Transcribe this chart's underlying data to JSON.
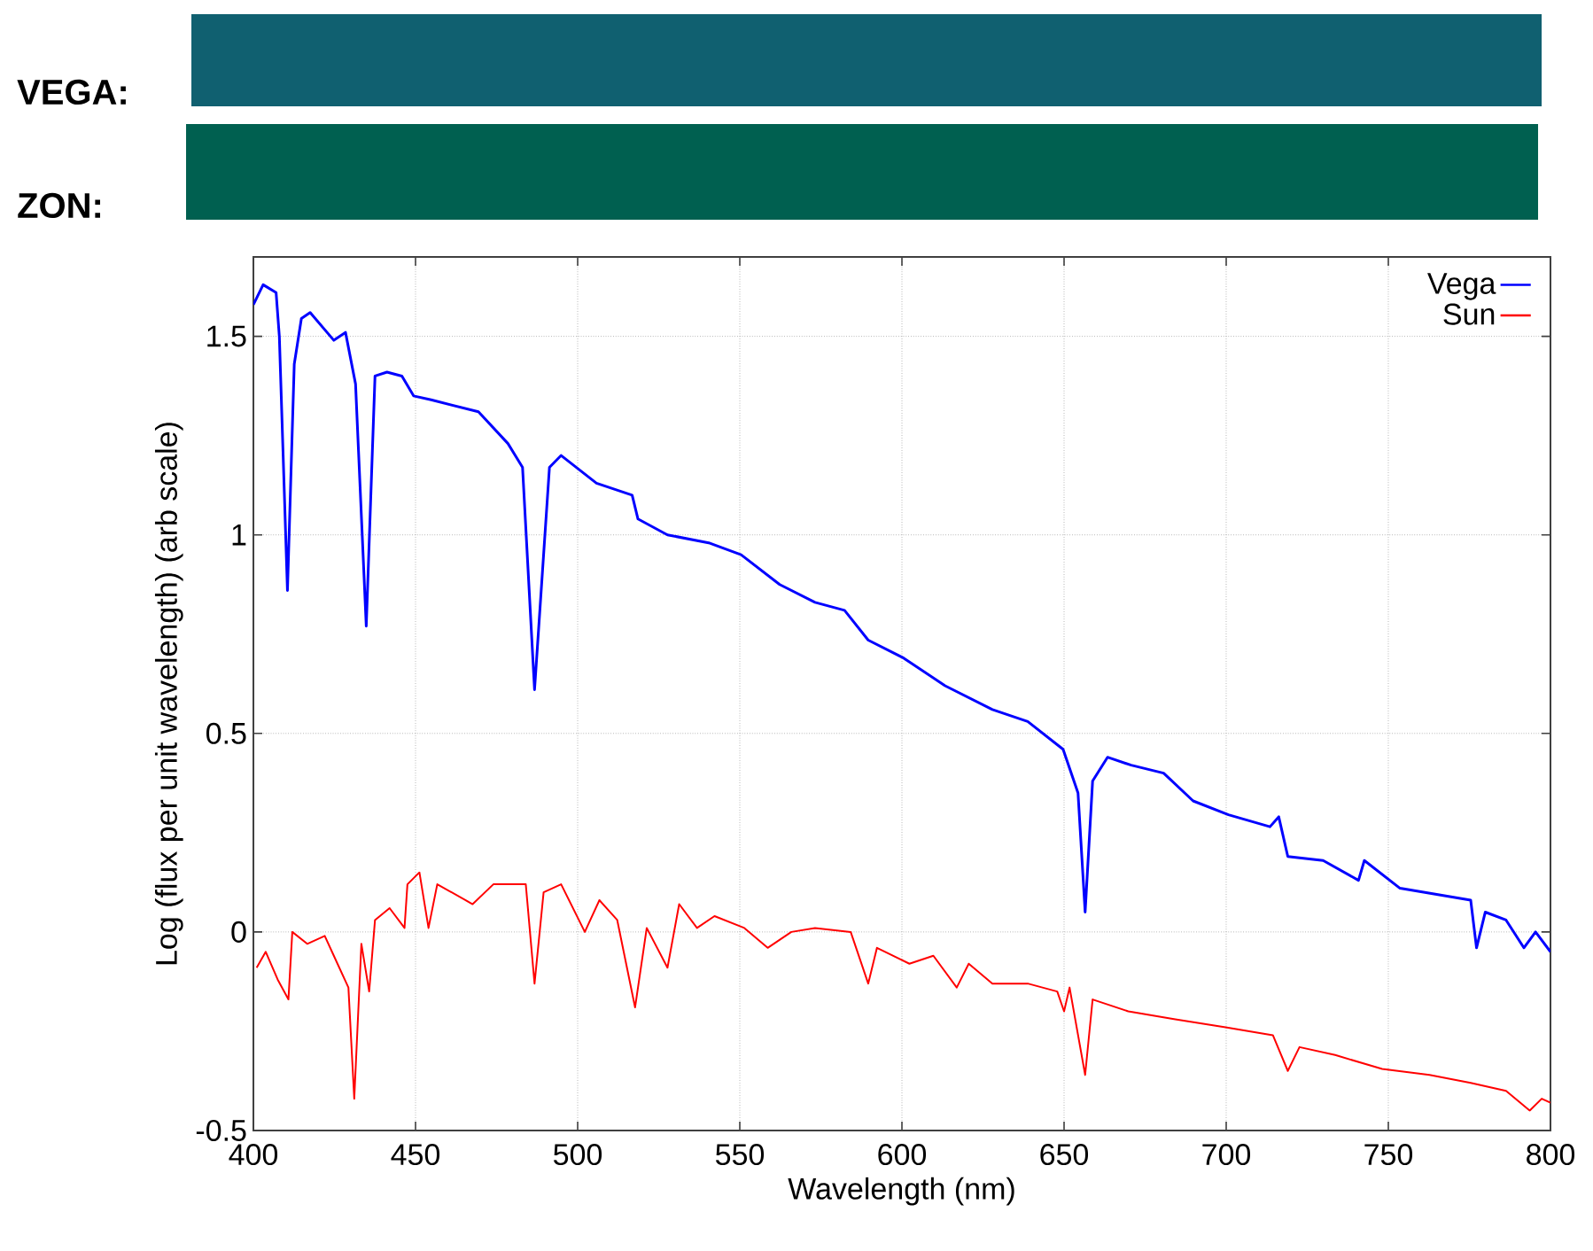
{
  "chart_data": {
    "type": "line",
    "xlabel": "Wavelength (nm)",
    "ylabel": "Log (flux per unit wavelength) (arb scale)",
    "annotations": [
      "VEGA:",
      "ZON:"
    ],
    "xlim": [
      400,
      800
    ],
    "ylim": [
      -0.5,
      1.7
    ],
    "xticks": [
      400,
      450,
      500,
      550,
      600,
      650,
      700,
      750,
      800
    ],
    "yticks": [
      -0.5,
      0,
      0.5,
      1,
      1.5
    ],
    "grid": true,
    "legend": "top right",
    "line_style": "solid",
    "marker": "none",
    "series": [
      {
        "name": "Vega",
        "color": "#0000ff",
        "x": [
          400,
          403,
          407,
          408,
          410.5,
          412.6,
          414.8,
          417.5,
          424.8,
          428.4,
          431.5,
          434.8,
          437.5,
          441.2,
          445.8,
          449.4,
          454.8,
          469.4,
          478.5,
          483,
          486.7,
          491.3,
          494.9,
          505.8,
          516.8,
          518.6,
          527.7,
          540.4,
          550.4,
          562.3,
          573.2,
          582.3,
          589.6,
          600.5,
          613.3,
          627.9,
          638.8,
          649.7,
          654.3,
          656.5,
          658.8,
          663.4,
          670.7,
          680.7,
          689.8,
          700.7,
          713.5,
          716.2,
          719,
          729.9,
          740.8,
          742.6,
          753.6,
          775.4,
          777.2,
          779.9,
          786.3,
          791.8,
          795.4,
          800
        ],
        "values": [
          1.58,
          1.63,
          1.61,
          1.5,
          0.86,
          1.43,
          1.545,
          1.56,
          1.49,
          1.51,
          1.38,
          0.77,
          1.4,
          1.41,
          1.4,
          1.35,
          1.34,
          1.31,
          1.23,
          1.17,
          0.61,
          1.17,
          1.2,
          1.13,
          1.1,
          1.04,
          1.0,
          0.98,
          0.95,
          0.875,
          0.83,
          0.81,
          0.735,
          0.69,
          0.62,
          0.56,
          0.53,
          0.46,
          0.35,
          0.05,
          0.38,
          0.44,
          0.42,
          0.4,
          0.33,
          0.295,
          0.265,
          0.29,
          0.19,
          0.18,
          0.13,
          0.18,
          0.11,
          0.08,
          -0.04,
          0.05,
          0.03,
          -0.04,
          0.0,
          -0.05
        ]
      },
      {
        "name": "Sun",
        "color": "#ff0000",
        "x": [
          401,
          403.8,
          407.5,
          410.8,
          412,
          416.6,
          422,
          424.8,
          429.3,
          431.1,
          433.3,
          435.7,
          437.5,
          442,
          446.6,
          447.5,
          451.2,
          454,
          456.7,
          467.6,
          474,
          484,
          486.7,
          489.5,
          494.9,
          502.2,
          506.7,
          512.2,
          517.7,
          521.3,
          527.7,
          531.3,
          536.8,
          542.2,
          551.4,
          558.6,
          565.9,
          573.2,
          584.2,
          589.6,
          592.3,
          602.3,
          609.7,
          616.9,
          620.6,
          627.9,
          638.8,
          647.9,
          650,
          651.7,
          656.5,
          658.8,
          669.8,
          684.3,
          699.8,
          714.4,
          719,
          722.6,
          733.6,
          748.1,
          762.7,
          775.4,
          786.3,
          793.6,
          797.3,
          800
        ],
        "values": [
          -0.09,
          -0.05,
          -0.12,
          -0.17,
          0.0,
          -0.03,
          -0.01,
          -0.06,
          -0.14,
          -0.42,
          -0.03,
          -0.15,
          0.03,
          0.06,
          0.01,
          0.12,
          0.15,
          0.01,
          0.12,
          0.07,
          0.12,
          0.12,
          -0.13,
          0.1,
          0.12,
          0.0,
          0.08,
          0.03,
          -0.19,
          0.01,
          -0.09,
          0.07,
          0.01,
          0.04,
          0.01,
          -0.04,
          0.0,
          0.01,
          0.0,
          -0.13,
          -0.04,
          -0.08,
          -0.06,
          -0.14,
          -0.08,
          -0.13,
          -0.13,
          -0.15,
          -0.2,
          -0.14,
          -0.36,
          -0.17,
          -0.2,
          -0.22,
          -0.24,
          -0.26,
          -0.35,
          -0.29,
          -0.31,
          -0.345,
          -0.36,
          -0.38,
          -0.4,
          -0.45,
          -0.42,
          -0.43
        ]
      }
    ]
  }
}
